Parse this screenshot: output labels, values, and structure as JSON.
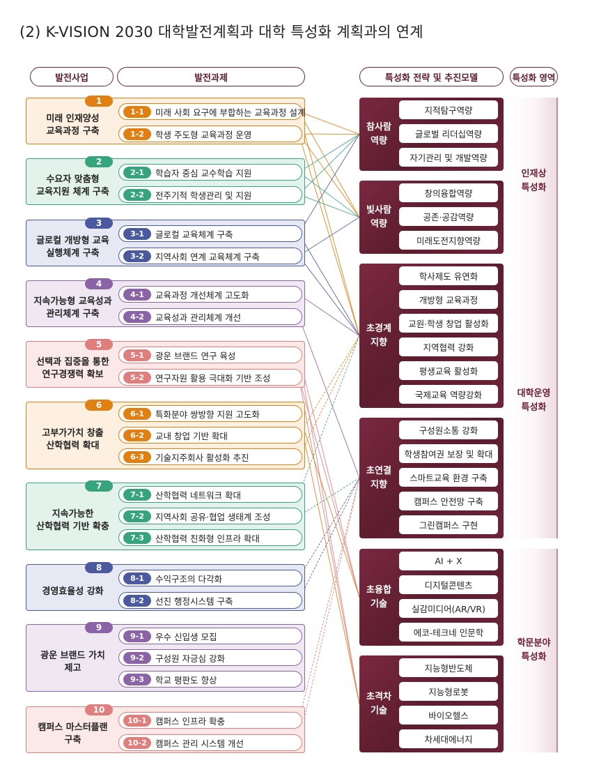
{
  "title": "(2) K-VISION 2030 대학발전계획과 대학 특성화 계획과의 연계",
  "headers": {
    "projects": "발전사업",
    "tasks": "발전과제",
    "strategies": "특성화 전략 및 추진모델",
    "areas": "특성화 영역"
  },
  "projects": [
    {
      "num": "1",
      "name": "미래 인재양성\n교육과정 구축",
      "color": "#e07f12",
      "bg": "#fdf0e0",
      "tasks": [
        {
          "id": "1-1",
          "label": "미래 사회 요구에 부합하는 교육과정 설계"
        },
        {
          "id": "1-2",
          "label": "학생 주도형 교육과정 운영"
        }
      ]
    },
    {
      "num": "2",
      "name": "수요자 맞춤형\n교육지원 체계 구축",
      "color": "#36a47c",
      "bg": "#e3f3ec",
      "tasks": [
        {
          "id": "2-1",
          "label": "학습자 중심 교수학습 지원"
        },
        {
          "id": "2-2",
          "label": "전주기적 학생관리 및 지원"
        }
      ]
    },
    {
      "num": "3",
      "name": "글로컬 개방형 교육\n실행체계 구축",
      "color": "#4b5a9e",
      "bg": "#e6e9f4",
      "tasks": [
        {
          "id": "3-1",
          "label": "글로컬 교육체계 구축"
        },
        {
          "id": "3-2",
          "label": "지역사회 연계 교육체계 구축"
        }
      ]
    },
    {
      "num": "4",
      "name": "지속가능형 교육성과\n관리체계 구축",
      "color": "#8a64a6",
      "bg": "#efe8f3",
      "tasks": [
        {
          "id": "4-1",
          "label": "교육과정 개선체계 고도화"
        },
        {
          "id": "4-2",
          "label": "교육성과 관리체계 개선"
        }
      ]
    },
    {
      "num": "5",
      "name": "선택과 집중을 통한\n연구경쟁력 확보",
      "color": "#e07e7e",
      "bg": "#fbe9e8",
      "tasks": [
        {
          "id": "5-1",
          "label": "광운 브랜드 연구 육성"
        },
        {
          "id": "5-2",
          "label": "연구자원 활용 극대화 기반 조성"
        }
      ]
    },
    {
      "num": "6",
      "name": "고부가가치 창출\n산학협력 확대",
      "color": "#e07f12",
      "bg": "#fdf0e0",
      "tasks": [
        {
          "id": "6-1",
          "label": "특화분야 쌍방향 지원 고도화"
        },
        {
          "id": "6-2",
          "label": "교내 창업 기반 확대"
        },
        {
          "id": "6-3",
          "label": "기술지주회사 활성화 추진"
        }
      ]
    },
    {
      "num": "7",
      "name": "지속가능한\n산학협력 기반 확충",
      "color": "#36a47c",
      "bg": "#e3f3ec",
      "tasks": [
        {
          "id": "7-1",
          "label": "산학협력 네트워크 확대"
        },
        {
          "id": "7-2",
          "label": "지역사회 공유·협업 생태계 조성"
        },
        {
          "id": "7-3",
          "label": "산학협력 친화형 인프라 확대"
        }
      ]
    },
    {
      "num": "8",
      "name": "경영효율성 강화",
      "color": "#4b5a9e",
      "bg": "#e6e9f4",
      "tasks": [
        {
          "id": "8-1",
          "label": "수익구조의 다각화"
        },
        {
          "id": "8-2",
          "label": "선진 행정시스템 구축"
        }
      ]
    },
    {
      "num": "9",
      "name": "광운 브랜드 가치\n제고",
      "color": "#8a64a6",
      "bg": "#efe8f3",
      "tasks": [
        {
          "id": "9-1",
          "label": "우수 신입생 모집"
        },
        {
          "id": "9-2",
          "label": "구성원 자긍심 강화"
        },
        {
          "id": "9-3",
          "label": "학교 평판도 향상"
        }
      ]
    },
    {
      "num": "10",
      "name": "캠퍼스 마스터플랜\n구축",
      "color": "#e07e7e",
      "bg": "#fbe9e8",
      "tasks": [
        {
          "id": "10-1",
          "label": "캠퍼스 인프라 확충"
        },
        {
          "id": "10-2",
          "label": "캠퍼스 관리 시스템 개선"
        }
      ]
    }
  ],
  "strategies": [
    {
      "label": "참사람\n역량",
      "items": [
        "지적탐구역량",
        "글로벌 리더십역량",
        "자기관리 및 개발역량"
      ]
    },
    {
      "label": "빛사람\n역량",
      "items": [
        "창의융합역량",
        "공존·공감역량",
        "미래도전지향역량"
      ]
    },
    {
      "label": "초경계\n지향",
      "items": [
        "학사제도 유연화",
        "개방형 교육과정",
        "교원·학생 창업 활성화",
        "지역협력 강화",
        "평생교육 활성화",
        "국제교육 역량강화"
      ]
    },
    {
      "label": "초연결\n지향",
      "items": [
        "구성원소통 강화",
        "학생참여권 보장 및 확대",
        "스마트교육 환경 구축",
        "캠퍼스 안전망 구축",
        "그린캠퍼스 구현"
      ]
    },
    {
      "label": "초융합\n기술",
      "items": [
        "AI + X",
        "디지털콘텐츠",
        "실감미디어(AR/VR)",
        "에코-테크네 인문학"
      ]
    },
    {
      "label": "초격차\n기술",
      "items": [
        "지능형반도체",
        "지능형로봇",
        "바이오헬스",
        "차세대에너지"
      ]
    }
  ],
  "areas": [
    {
      "label": "인재상\n특성화"
    },
    {
      "label": "대학운영\n특성화"
    },
    {
      "label": "학문분야\n특성화"
    }
  ],
  "links": [
    {
      "from": "1-1",
      "to": 0,
      "dashed": false
    },
    {
      "from": "1-1",
      "to": 1,
      "dashed": false
    },
    {
      "from": "1-1",
      "to": 2,
      "dashed": false
    },
    {
      "from": "1-2",
      "to": 0,
      "dashed": false
    },
    {
      "from": "1-2",
      "to": 1,
      "dashed": false
    },
    {
      "from": "1-2",
      "to": 2,
      "dashed": false
    },
    {
      "from": "2-1",
      "to": 0,
      "dashed": false
    },
    {
      "from": "2-1",
      "to": 1,
      "dashed": false
    },
    {
      "from": "2-2",
      "to": 0,
      "dashed": false
    },
    {
      "from": "2-2",
      "to": 1,
      "dashed": false
    },
    {
      "from": "3-1",
      "to": 0,
      "dashed": false
    },
    {
      "from": "3-1",
      "to": 2,
      "dashed": false
    },
    {
      "from": "3-2",
      "to": 1,
      "dashed": false
    },
    {
      "from": "3-2",
      "to": 2,
      "dashed": false
    },
    {
      "from": "4-1",
      "to": 2,
      "dashed": false
    },
    {
      "from": "4-2",
      "to": 3,
      "dashed": false
    },
    {
      "from": "5-1",
      "to": 4,
      "dashed": false
    },
    {
      "from": "5-1",
      "to": 5,
      "dashed": false
    },
    {
      "from": "5-2",
      "to": 4,
      "dashed": false
    },
    {
      "from": "5-2",
      "to": 5,
      "dashed": false
    },
    {
      "from": "6-1",
      "to": 4,
      "dashed": false
    },
    {
      "from": "6-1",
      "to": 5,
      "dashed": false
    },
    {
      "from": "6-2",
      "to": 2,
      "dashed": true
    },
    {
      "from": "6-3",
      "to": 2,
      "dashed": true
    },
    {
      "from": "7-1",
      "to": 2,
      "dashed": true
    },
    {
      "from": "7-2",
      "to": 3,
      "dashed": true
    },
    {
      "from": "8-1",
      "to": 3,
      "dashed": true
    },
    {
      "from": "8-2",
      "to": 3,
      "dashed": true
    },
    {
      "from": "10-1",
      "to": 3,
      "dashed": true
    },
    {
      "from": "10-2",
      "to": 3,
      "dashed": true
    }
  ]
}
